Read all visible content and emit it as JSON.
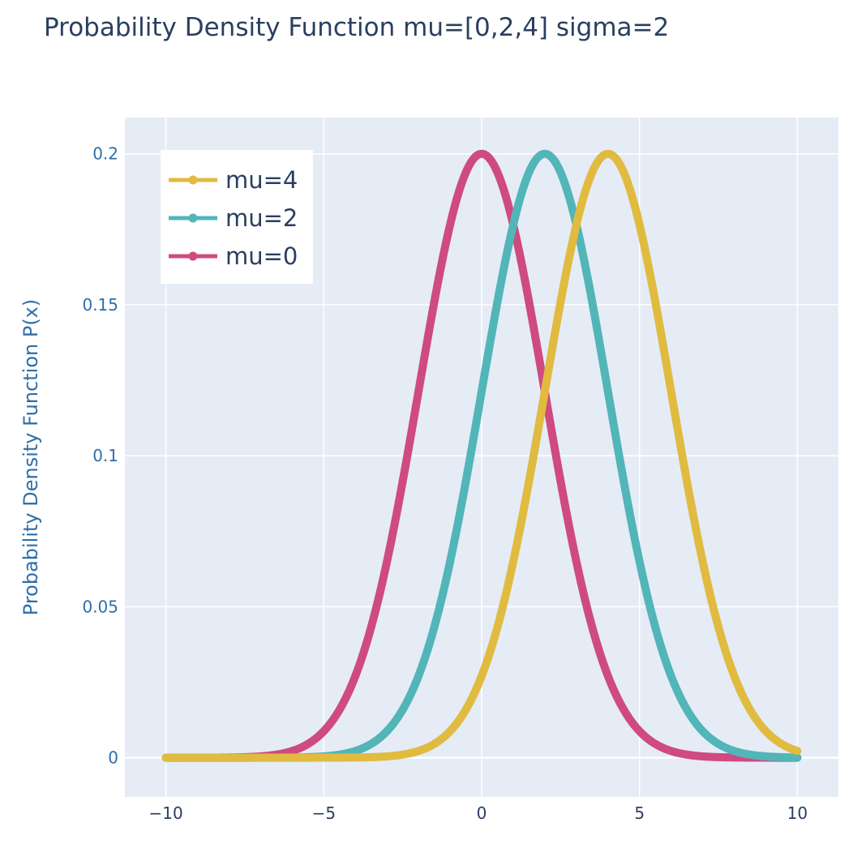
{
  "chart_data": {
    "type": "line",
    "title": "Probability Density Function mu=[0,2,4] sigma=2",
    "xlabel": "",
    "ylabel": "Probability Density Function P(x)",
    "xlim": [
      -11.3,
      11.3
    ],
    "ylim": [
      -0.013,
      0.212
    ],
    "x_range": [
      -10,
      10
    ],
    "x_ticks": [
      -10,
      -5,
      0,
      5,
      10
    ],
    "x_tick_labels": [
      "−10",
      "−5",
      "0",
      "5",
      "10"
    ],
    "y_ticks": [
      0,
      0.05,
      0.1,
      0.15,
      0.2
    ],
    "y_tick_labels": [
      "0",
      "0.05",
      "0.1",
      "0.15",
      "0.2"
    ],
    "grid": true,
    "legend_position": "top-left",
    "sigma": 2,
    "series": [
      {
        "name": "mu=4",
        "mu": 4,
        "color": "#e0bb40"
      },
      {
        "name": "mu=2",
        "mu": 2,
        "color": "#52b5b8"
      },
      {
        "name": "mu=0",
        "mu": 0,
        "color": "#cf4a80"
      }
    ]
  },
  "colors": {
    "plot_background": "#e5ecf6",
    "gridline": "#ffffff",
    "title": "#2a3f5f",
    "axis_text": "#2f6fa8",
    "x_tick_text": "#2a3f5f",
    "legend_background": "#ffffff"
  }
}
